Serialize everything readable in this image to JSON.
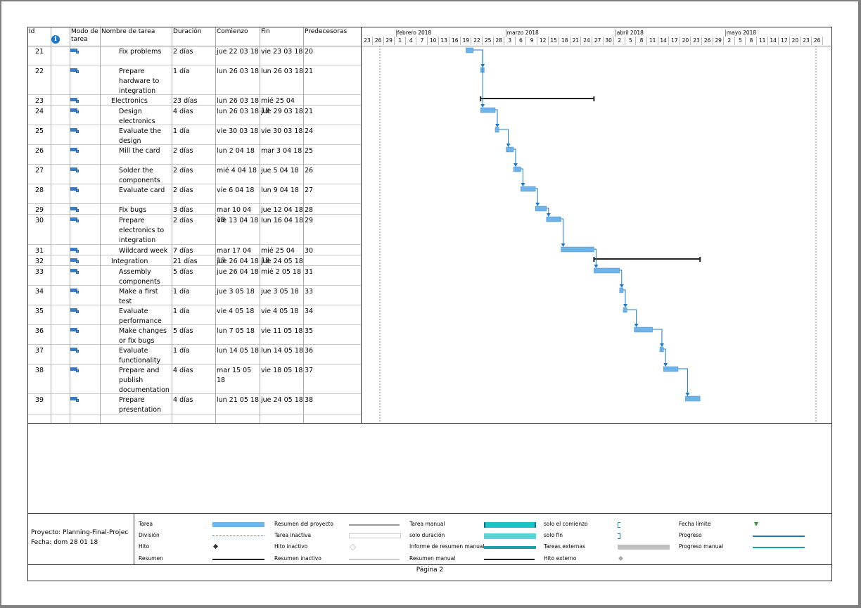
{
  "headers": {
    "id": "Id",
    "mode": "Modo de tarea",
    "name": "Nombre de tarea",
    "duration": "Duración",
    "start": "Comienzo",
    "end": "Fin",
    "pred": "Predecesoras"
  },
  "timeline": {
    "months": [
      "febrero 2018",
      "marzo 2018",
      "abril 2018",
      "mayo 2018"
    ],
    "days": [
      "23",
      "26",
      "29",
      "1",
      "4",
      "7",
      "10",
      "13",
      "16",
      "19",
      "22",
      "25",
      "28",
      "3",
      "6",
      "9",
      "12",
      "15",
      "18",
      "21",
      "24",
      "27",
      "30",
      "2",
      "5",
      "8",
      "11",
      "14",
      "17",
      "20",
      "23",
      "26",
      "29",
      "2",
      "5",
      "8",
      "11",
      "14",
      "17",
      "20",
      "23",
      "26"
    ]
  },
  "tasks": [
    {
      "id": "21",
      "name": "Fix problems",
      "duration": "2 días",
      "start": "jue 22 03 18",
      "end": "vie 23 03 18",
      "pred": "20"
    },
    {
      "id": "22",
      "name": "Prepare hardware to integration",
      "duration": "1 día",
      "start": "lun 26 03 18",
      "end": "lun 26 03 18",
      "pred": "21"
    },
    {
      "id": "23",
      "name": "Electronics",
      "duration": "23 días",
      "start": "lun 26 03 18",
      "end": "mié 25 04 18",
      "pred": ""
    },
    {
      "id": "24",
      "name": "Design electronics",
      "duration": "4 días",
      "start": "lun 26 03 18",
      "end": "jue 29 03 18",
      "pred": "21"
    },
    {
      "id": "25",
      "name": "Evaluate the design",
      "duration": "1 día",
      "start": "vie 30 03 18",
      "end": "vie 30 03 18",
      "pred": "24"
    },
    {
      "id": "26",
      "name": "Mill the card",
      "duration": "2 días",
      "start": "lun 2 04 18",
      "end": "mar 3 04 18",
      "pred": "25"
    },
    {
      "id": "27",
      "name": "Solder the components",
      "duration": "2 días",
      "start": "mié 4 04 18",
      "end": "jue 5 04 18",
      "pred": "26"
    },
    {
      "id": "28",
      "name": "Evaluate card",
      "duration": "2 días",
      "start": "vie 6 04 18",
      "end": "lun 9 04 18",
      "pred": "27"
    },
    {
      "id": "29",
      "name": "Fix bugs",
      "duration": "3 días",
      "start": "mar 10 04 18",
      "end": "jue 12 04 18",
      "pred": "28"
    },
    {
      "id": "30",
      "name": "Prepare electronics to integration",
      "duration": "2 días",
      "start": "vie 13 04 18",
      "end": "lun 16 04 18",
      "pred": "29"
    },
    {
      "id": "31",
      "name": "Wildcard week",
      "duration": "7 días",
      "start": "mar 17 04 18",
      "end": "mié 25 04 18",
      "pred": "30"
    },
    {
      "id": "32",
      "name": "Integration",
      "duration": "21 días",
      "start": "jue 26 04 18",
      "end": "jue 24 05 18",
      "pred": ""
    },
    {
      "id": "33",
      "name": "Assembly components",
      "duration": "5 días",
      "start": "jue 26 04 18",
      "end": "mié 2 05 18",
      "pred": "31"
    },
    {
      "id": "34",
      "name": "Make a first test",
      "duration": "1 día",
      "start": "jue 3 05 18",
      "end": "jue 3 05 18",
      "pred": "33"
    },
    {
      "id": "35",
      "name": "Evaluate performance",
      "duration": "1 día",
      "start": "vie 4 05 18",
      "end": "vie 4 05 18",
      "pred": "34"
    },
    {
      "id": "36",
      "name": "Make changes or fix bugs",
      "duration": "5 días",
      "start": "lun 7 05 18",
      "end": "vie 11 05 18",
      "pred": "35"
    },
    {
      "id": "37",
      "name": "Evaluate functionality",
      "duration": "1 día",
      "start": "lun 14 05 18",
      "end": "lun 14 05 18",
      "pred": "36"
    },
    {
      "id": "38",
      "name": "Prepare and publish documentation",
      "duration": "4 días",
      "start": "mar 15 05 18",
      "end": "vie 18 05 18",
      "pred": "37"
    },
    {
      "id": "39",
      "name": "Prepare presentation",
      "duration": "4 días",
      "start": "lun 21 05 18",
      "end": "jue 24 05 18",
      "pred": "38"
    }
  ],
  "legend": {
    "project_label": "Proyecto: Planning-Final-Projec",
    "date_label": "Fecha: dom 28 01 18",
    "items": [
      "Tarea",
      "División",
      "Hito",
      "Resumen",
      "Resumen del proyecto",
      "Tarea inactiva",
      "Hito inactivo",
      "Resumen inactivo",
      "Tarea manual",
      "solo duración",
      "Informe de resumen manual",
      "Resumen manual",
      "solo el comienzo",
      "solo fin",
      "Tareas externas",
      "Hito externo",
      "Fecha límite",
      "Progreso",
      "Progreso manual"
    ]
  },
  "page_label": "Página 2",
  "colors": {
    "bar": "#6fb4e8",
    "summary": "#222222",
    "link": "#1e78c8",
    "manual": "#19c3c8"
  }
}
